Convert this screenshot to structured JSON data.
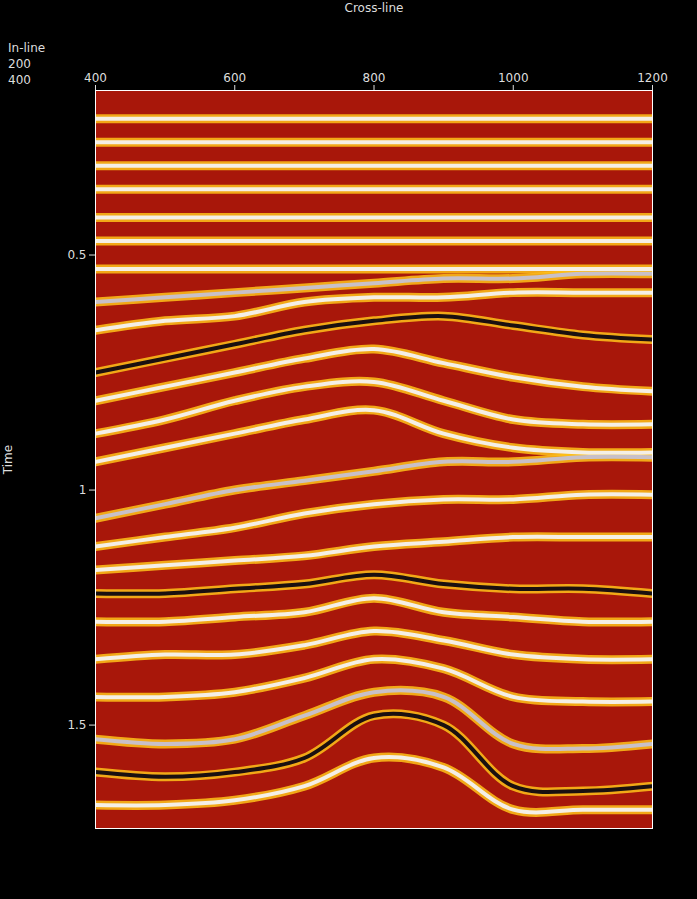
{
  "chart_data": {
    "type": "seismic",
    "x_label": "Cross-line",
    "y_label": "Time",
    "inline_label": "In-line",
    "inline_ticks": [
      200,
      400
    ],
    "color": "#a8170a",
    "xlim": [
      400,
      1200
    ],
    "xticks": [
      400,
      600,
      800,
      1000,
      1200
    ],
    "ylim": [
      0.15,
      1.72
    ],
    "yticks": [
      0.5,
      1,
      1.5
    ],
    "x": [
      400,
      500,
      600,
      700,
      800,
      900,
      1000,
      1100,
      1200
    ],
    "series": [
      {
        "color": "#f4efe6",
        "values": [
          0.21,
          0.21,
          0.21,
          0.21,
          0.21,
          0.21,
          0.21,
          0.21,
          0.21
        ]
      },
      {
        "color": "#f4efe6",
        "values": [
          0.26,
          0.26,
          0.26,
          0.26,
          0.26,
          0.26,
          0.26,
          0.26,
          0.26
        ]
      },
      {
        "color": "#f4efe6",
        "values": [
          0.31,
          0.31,
          0.31,
          0.31,
          0.31,
          0.31,
          0.31,
          0.31,
          0.31
        ]
      },
      {
        "color": "#f4efe6",
        "values": [
          0.36,
          0.36,
          0.36,
          0.36,
          0.36,
          0.36,
          0.36,
          0.36,
          0.36
        ]
      },
      {
        "color": "#f4efe6",
        "values": [
          0.42,
          0.42,
          0.42,
          0.42,
          0.42,
          0.42,
          0.42,
          0.42,
          0.42
        ]
      },
      {
        "color": "#f4efe6",
        "values": [
          0.47,
          0.47,
          0.47,
          0.47,
          0.47,
          0.47,
          0.47,
          0.47,
          0.47
        ]
      },
      {
        "color": "#f4efe6",
        "values": [
          0.53,
          0.53,
          0.53,
          0.53,
          0.53,
          0.53,
          0.53,
          0.53,
          0.53
        ]
      },
      {
        "color": "#c8c0c8",
        "values": [
          0.6,
          0.59,
          0.58,
          0.57,
          0.56,
          0.55,
          0.55,
          0.54,
          0.54
        ]
      },
      {
        "color": "#f4efe6",
        "values": [
          0.66,
          0.64,
          0.63,
          0.6,
          0.59,
          0.59,
          0.58,
          0.58,
          0.58
        ]
      },
      {
        "color": "#1a1010",
        "values": [
          0.75,
          0.72,
          0.69,
          0.66,
          0.64,
          0.63,
          0.65,
          0.67,
          0.68
        ]
      },
      {
        "color": "#f4efe6",
        "values": [
          0.81,
          0.78,
          0.75,
          0.72,
          0.7,
          0.73,
          0.76,
          0.78,
          0.79
        ]
      },
      {
        "color": "#f4efe6",
        "values": [
          0.88,
          0.85,
          0.81,
          0.78,
          0.77,
          0.81,
          0.85,
          0.86,
          0.86
        ]
      },
      {
        "color": "#f4efe6",
        "values": [
          0.94,
          0.91,
          0.88,
          0.85,
          0.83,
          0.88,
          0.91,
          0.92,
          0.92
        ]
      },
      {
        "color": "#c8c0c8",
        "values": [
          1.06,
          1.03,
          1.0,
          0.98,
          0.96,
          0.94,
          0.94,
          0.93,
          0.93
        ]
      },
      {
        "color": "#f4efe6",
        "values": [
          1.12,
          1.1,
          1.08,
          1.05,
          1.03,
          1.02,
          1.02,
          1.01,
          1.01
        ]
      },
      {
        "color": "#f4efe6",
        "values": [
          1.17,
          1.16,
          1.15,
          1.14,
          1.12,
          1.11,
          1.1,
          1.1,
          1.1
        ]
      },
      {
        "color": "#1a1010",
        "values": [
          1.22,
          1.22,
          1.21,
          1.2,
          1.18,
          1.2,
          1.21,
          1.21,
          1.22
        ]
      },
      {
        "color": "#f4efe6",
        "values": [
          1.28,
          1.28,
          1.27,
          1.26,
          1.23,
          1.26,
          1.27,
          1.28,
          1.28
        ]
      },
      {
        "color": "#f4efe6",
        "values": [
          1.36,
          1.35,
          1.35,
          1.33,
          1.3,
          1.32,
          1.35,
          1.36,
          1.36
        ]
      },
      {
        "color": "#f4efe6",
        "values": [
          1.44,
          1.44,
          1.43,
          1.4,
          1.36,
          1.38,
          1.44,
          1.45,
          1.45
        ]
      },
      {
        "color": "#c8c0c8",
        "values": [
          1.53,
          1.54,
          1.53,
          1.48,
          1.43,
          1.44,
          1.54,
          1.55,
          1.54
        ]
      },
      {
        "color": "#1a1010",
        "values": [
          1.6,
          1.61,
          1.6,
          1.57,
          1.48,
          1.5,
          1.63,
          1.64,
          1.63
        ]
      },
      {
        "color": "#f4efe6",
        "values": [
          1.67,
          1.67,
          1.66,
          1.63,
          1.57,
          1.59,
          1.68,
          1.68,
          1.68
        ]
      }
    ]
  }
}
